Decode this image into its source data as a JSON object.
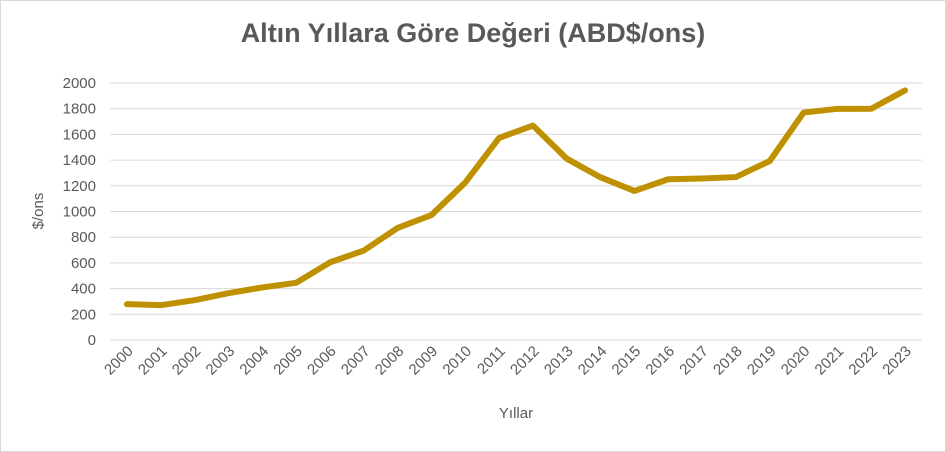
{
  "chart_data": {
    "type": "line",
    "title": "Altın Yıllara Göre Değeri (ABD$/ons)",
    "xlabel": "Yıllar",
    "ylabel": "$/ons",
    "ylim": [
      0,
      2000
    ],
    "yticks": [
      0,
      200,
      400,
      600,
      800,
      1000,
      1200,
      1400,
      1600,
      1800,
      2000
    ],
    "grid": true,
    "legend": "none",
    "categories": [
      "2000",
      "2001",
      "2002",
      "2003",
      "2004",
      "2005",
      "2006",
      "2007",
      "2008",
      "2009",
      "2010",
      "2011",
      "2012",
      "2013",
      "2014",
      "2015",
      "2016",
      "2017",
      "2018",
      "2019",
      "2020",
      "2021",
      "2022",
      "2023"
    ],
    "series": [
      {
        "color": "#bf9000",
        "values": [
          279,
          271,
          310,
          364,
          409,
          445,
          604,
          696,
          872,
          972,
          1225,
          1572,
          1669,
          1411,
          1266,
          1160,
          1251,
          1257,
          1268,
          1393,
          1770,
          1799,
          1800,
          1943
        ]
      }
    ]
  }
}
